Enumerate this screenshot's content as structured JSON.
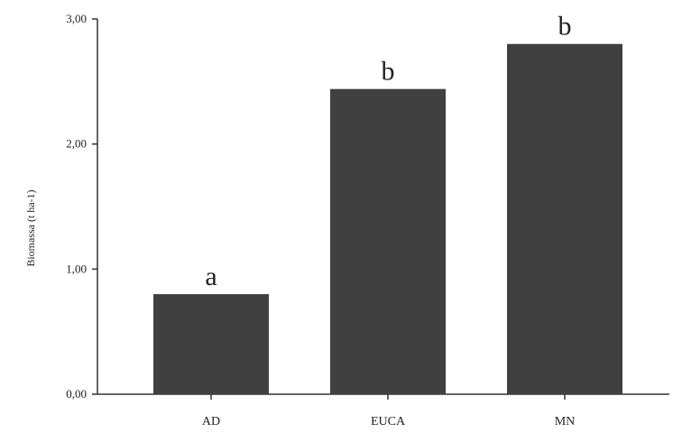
{
  "chart_data": {
    "type": "bar",
    "categories": [
      "AD",
      "EUCA",
      "MN"
    ],
    "values": [
      0.8,
      2.44,
      2.8
    ],
    "data_labels": [
      "a",
      "b",
      "b"
    ],
    "ylabel": "Biomassa (t ha-1)",
    "xlabel": "",
    "ylim": [
      0,
      3
    ],
    "y_ticks": [
      0,
      1,
      2,
      3
    ],
    "y_tick_labels": [
      "0,00",
      "1,00",
      "2,00",
      "3,00"
    ],
    "grid": false,
    "legend": "none",
    "bar_color": "#404040"
  }
}
